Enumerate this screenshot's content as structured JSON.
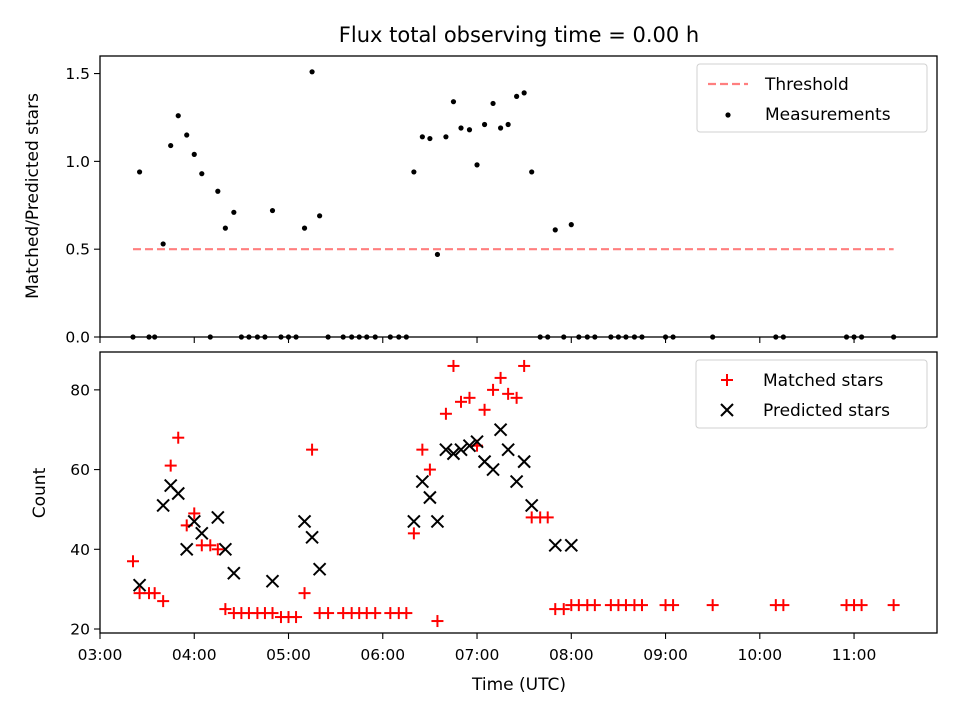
{
  "chart_data": [
    {
      "type": "scatter",
      "title": "Flux total observing time = 0.00 h",
      "xlabel": "",
      "ylabel": "Matched/Predicted stars",
      "xlim": [
        3.0,
        11.88
      ],
      "ylim": [
        0,
        1.6
      ],
      "yticks": [
        0.0,
        0.5,
        1.0,
        1.5
      ],
      "ytick_labels": [
        "0.0",
        "0.5",
        "1.0",
        "1.5"
      ],
      "legend": "top-right",
      "grid": false,
      "threshold": {
        "name": "Threshold",
        "value": 0.5,
        "x": [
          3.35,
          11.42
        ],
        "color": "#ff7f7f"
      },
      "series": [
        {
          "name": "Measurements",
          "marker": "dot",
          "color": "#000000",
          "points": [
            [
              3.35,
              0
            ],
            [
              3.42,
              0.94
            ],
            [
              3.52,
              0
            ],
            [
              3.58,
              0
            ],
            [
              3.67,
              0.53
            ],
            [
              3.75,
              1.09
            ],
            [
              3.83,
              1.26
            ],
            [
              3.92,
              1.15
            ],
            [
              4.0,
              1.04
            ],
            [
              4.08,
              0.93
            ],
            [
              4.17,
              0
            ],
            [
              4.25,
              0.83
            ],
            [
              4.33,
              0.62
            ],
            [
              4.42,
              0.71
            ],
            [
              4.5,
              0
            ],
            [
              4.58,
              0
            ],
            [
              4.67,
              0
            ],
            [
              4.75,
              0
            ],
            [
              4.83,
              0.72
            ],
            [
              4.92,
              0
            ],
            [
              5.0,
              0
            ],
            [
              5.08,
              0
            ],
            [
              5.17,
              0.62
            ],
            [
              5.25,
              1.51
            ],
            [
              5.33,
              0.69
            ],
            [
              5.42,
              0
            ],
            [
              5.58,
              0
            ],
            [
              5.67,
              0
            ],
            [
              5.75,
              0
            ],
            [
              5.83,
              0
            ],
            [
              5.92,
              0
            ],
            [
              6.08,
              0
            ],
            [
              6.17,
              0
            ],
            [
              6.25,
              0
            ],
            [
              6.33,
              0.94
            ],
            [
              6.42,
              1.14
            ],
            [
              6.5,
              1.13
            ],
            [
              6.58,
              0.47
            ],
            [
              6.67,
              1.14
            ],
            [
              6.75,
              1.34
            ],
            [
              6.83,
              1.19
            ],
            [
              6.92,
              1.18
            ],
            [
              7.0,
              0.98
            ],
            [
              7.08,
              1.21
            ],
            [
              7.17,
              1.33
            ],
            [
              7.25,
              1.19
            ],
            [
              7.33,
              1.21
            ],
            [
              7.42,
              1.37
            ],
            [
              7.5,
              1.39
            ],
            [
              7.58,
              0.94
            ],
            [
              7.67,
              0
            ],
            [
              7.75,
              0
            ],
            [
              7.83,
              0.61
            ],
            [
              7.92,
              0
            ],
            [
              8.0,
              0.64
            ],
            [
              8.08,
              0
            ],
            [
              8.17,
              0
            ],
            [
              8.25,
              0
            ],
            [
              8.42,
              0
            ],
            [
              8.5,
              0
            ],
            [
              8.58,
              0
            ],
            [
              8.67,
              0
            ],
            [
              8.75,
              0
            ],
            [
              9.0,
              0
            ],
            [
              9.08,
              0
            ],
            [
              9.5,
              0
            ],
            [
              10.17,
              0
            ],
            [
              10.25,
              0
            ],
            [
              10.92,
              0
            ],
            [
              11.0,
              0
            ],
            [
              11.08,
              0
            ],
            [
              11.42,
              0
            ]
          ]
        }
      ]
    },
    {
      "type": "scatter",
      "title": "",
      "xlabel": "Time (UTC)",
      "ylabel": "Count",
      "xlim": [
        3.0,
        11.88
      ],
      "ylim": [
        19,
        89.5
      ],
      "xticks": [
        3,
        4,
        5,
        6,
        7,
        8,
        9,
        10,
        11
      ],
      "xtick_labels": [
        "03:00",
        "04:00",
        "05:00",
        "06:00",
        "07:00",
        "08:00",
        "09:00",
        "10:00",
        "11:00"
      ],
      "yticks": [
        20,
        40,
        60,
        80
      ],
      "ytick_labels": [
        "20",
        "40",
        "60",
        "80"
      ],
      "legend": "top-right",
      "grid": false,
      "series": [
        {
          "name": "Matched stars",
          "marker": "plus",
          "color": "#ff0000",
          "points": [
            [
              3.35,
              37
            ],
            [
              3.42,
              29
            ],
            [
              3.52,
              29
            ],
            [
              3.58,
              29
            ],
            [
              3.67,
              27
            ],
            [
              3.75,
              61
            ],
            [
              3.83,
              68
            ],
            [
              3.92,
              46
            ],
            [
              4.0,
              49
            ],
            [
              4.08,
              41
            ],
            [
              4.17,
              41
            ],
            [
              4.25,
              40
            ],
            [
              4.33,
              25
            ],
            [
              4.42,
              24
            ],
            [
              4.5,
              24
            ],
            [
              4.58,
              24
            ],
            [
              4.67,
              24
            ],
            [
              4.75,
              24
            ],
            [
              4.83,
              24
            ],
            [
              4.92,
              23
            ],
            [
              5.0,
              23
            ],
            [
              5.08,
              23
            ],
            [
              5.17,
              29
            ],
            [
              5.25,
              65
            ],
            [
              5.33,
              24
            ],
            [
              5.42,
              24
            ],
            [
              5.58,
              24
            ],
            [
              5.67,
              24
            ],
            [
              5.75,
              24
            ],
            [
              5.83,
              24
            ],
            [
              5.92,
              24
            ],
            [
              6.08,
              24
            ],
            [
              6.17,
              24
            ],
            [
              6.25,
              24
            ],
            [
              6.33,
              44
            ],
            [
              6.42,
              65
            ],
            [
              6.5,
              60
            ],
            [
              6.58,
              22
            ],
            [
              6.67,
              74
            ],
            [
              6.75,
              86
            ],
            [
              6.83,
              77
            ],
            [
              6.92,
              78
            ],
            [
              7.0,
              66
            ],
            [
              7.08,
              75
            ],
            [
              7.17,
              80
            ],
            [
              7.25,
              83
            ],
            [
              7.33,
              79
            ],
            [
              7.42,
              78
            ],
            [
              7.5,
              86
            ],
            [
              7.58,
              48
            ],
            [
              7.67,
              48
            ],
            [
              7.75,
              48
            ],
            [
              7.83,
              25
            ],
            [
              7.92,
              25
            ],
            [
              8.0,
              26
            ],
            [
              8.08,
              26
            ],
            [
              8.17,
              26
            ],
            [
              8.25,
              26
            ],
            [
              8.42,
              26
            ],
            [
              8.5,
              26
            ],
            [
              8.58,
              26
            ],
            [
              8.67,
              26
            ],
            [
              8.75,
              26
            ],
            [
              9.0,
              26
            ],
            [
              9.08,
              26
            ],
            [
              9.5,
              26
            ],
            [
              10.17,
              26
            ],
            [
              10.25,
              26
            ],
            [
              10.92,
              26
            ],
            [
              11.0,
              26
            ],
            [
              11.08,
              26
            ],
            [
              11.42,
              26
            ]
          ]
        },
        {
          "name": "Predicted stars",
          "marker": "x",
          "color": "#000000",
          "points": [
            [
              3.42,
              31
            ],
            [
              3.67,
              51
            ],
            [
              3.75,
              56
            ],
            [
              3.83,
              54
            ],
            [
              3.92,
              40
            ],
            [
              4.0,
              47
            ],
            [
              4.08,
              44
            ],
            [
              4.25,
              48
            ],
            [
              4.33,
              40
            ],
            [
              4.42,
              34
            ],
            [
              4.83,
              32
            ],
            [
              5.17,
              47
            ],
            [
              5.25,
              43
            ],
            [
              5.33,
              35
            ],
            [
              6.33,
              47
            ],
            [
              6.42,
              57
            ],
            [
              6.5,
              53
            ],
            [
              6.58,
              47
            ],
            [
              6.67,
              65
            ],
            [
              6.75,
              64
            ],
            [
              6.83,
              65
            ],
            [
              6.92,
              66
            ],
            [
              7.0,
              67
            ],
            [
              7.08,
              62
            ],
            [
              7.17,
              60
            ],
            [
              7.25,
              70
            ],
            [
              7.33,
              65
            ],
            [
              7.42,
              57
            ],
            [
              7.5,
              62
            ],
            [
              7.58,
              51
            ],
            [
              7.83,
              41
            ],
            [
              8.0,
              41
            ]
          ]
        }
      ]
    }
  ]
}
